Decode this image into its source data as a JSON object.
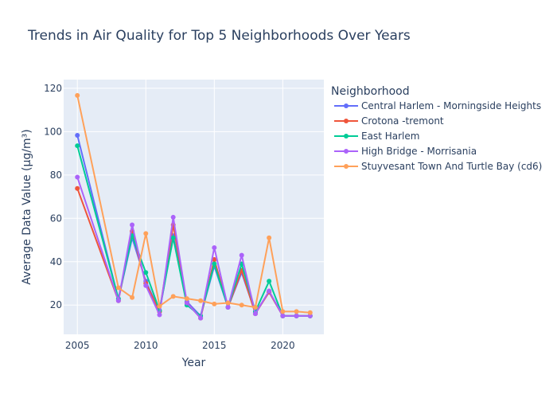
{
  "chart_data": {
    "type": "line",
    "title": "Trends in Air Quality for Top 5 Neighborhoods Over Years",
    "xlabel": "Year",
    "ylabel": "Average Data Value (μg/m³)",
    "xlim": [
      2004,
      2023
    ],
    "ylim": [
      6.5,
      124
    ],
    "xticks": [
      2005,
      2010,
      2015,
      2020
    ],
    "yticks": [
      20,
      40,
      60,
      80,
      100,
      120
    ],
    "grid": true,
    "legend": {
      "title": "Neighborhood",
      "placement": "right"
    },
    "x": [
      2005,
      2008,
      2009,
      2010,
      2011,
      2012,
      2013,
      2014,
      2015,
      2016,
      2017,
      2018,
      2019,
      2020,
      2021,
      2022
    ],
    "series": [
      {
        "name": "Central Harlem - Morningside Heights",
        "color": "#636efa",
        "values": [
          98.3,
          22.7,
          51.0,
          31.0,
          17.0,
          52.0,
          21.5,
          15.0,
          38.0,
          19.0,
          35.0,
          16.5,
          26.0,
          15.0,
          15.0,
          15.0
        ]
      },
      {
        "name": "Crotona -tremont",
        "color": "#EF553B",
        "values": [
          73.8,
          22.0,
          54.0,
          30.0,
          17.0,
          57.0,
          21.0,
          14.0,
          41.0,
          19.0,
          36.0,
          16.0,
          26.0,
          15.0,
          15.0,
          15.0
        ]
      },
      {
        "name": "East Harlem",
        "color": "#00cc96",
        "values": [
          93.5,
          23.0,
          52.0,
          35.0,
          17.5,
          51.0,
          20.0,
          15.0,
          39.0,
          19.0,
          39.0,
          17.0,
          31.0,
          15.0,
          15.0,
          15.0
        ]
      },
      {
        "name": "High Bridge - Morrisania",
        "color": "#ab63fa",
        "values": [
          79.0,
          22.0,
          57.0,
          29.0,
          15.5,
          60.5,
          21.0,
          14.0,
          46.5,
          19.0,
          43.0,
          16.0,
          26.5,
          15.0,
          15.0,
          15.0
        ]
      },
      {
        "name": "Stuyvesant Town And Turtle Bay (cd6)",
        "color": "#FFA15A",
        "values": [
          116.7,
          28.0,
          23.5,
          53.0,
          19.5,
          24.0,
          23.0,
          22.0,
          20.5,
          21.0,
          20.0,
          19.0,
          51.0,
          17.0,
          17.0,
          16.5
        ]
      }
    ]
  }
}
